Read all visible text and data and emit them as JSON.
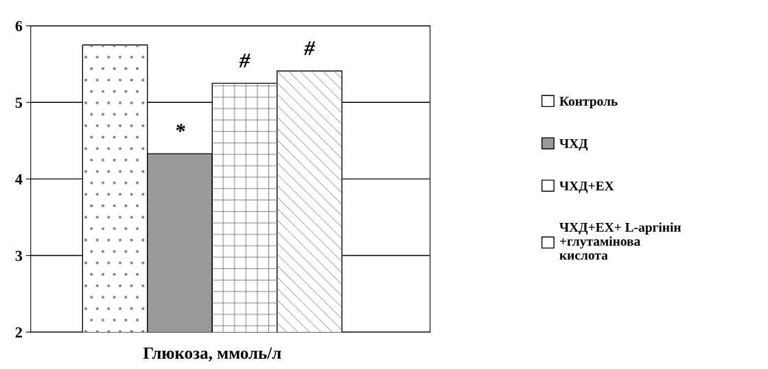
{
  "chart_data": {
    "type": "bar",
    "categories": [
      "Глюкоза, ммоль/л"
    ],
    "series": [
      {
        "name": "Контроль",
        "color": "#ffffff",
        "values": [
          5.75
        ]
      },
      {
        "name": "ЧХД",
        "color": "#999999",
        "values": [
          4.33
        ]
      },
      {
        "name": "ЧХД+ЕХ",
        "color": "#ffffff",
        "values": [
          5.25
        ]
      },
      {
        "name": "ЧХД+ЕХ+ L-аргінін\n+глутамінова\nкислота",
        "color": "#ffffff",
        "values": [
          5.41
        ]
      }
    ],
    "ylim": [
      2,
      6
    ],
    "yticks": [
      2,
      3,
      4,
      5,
      6
    ],
    "annotations": [
      "*",
      "#",
      "#"
    ],
    "grid": "y",
    "legend": "right"
  }
}
